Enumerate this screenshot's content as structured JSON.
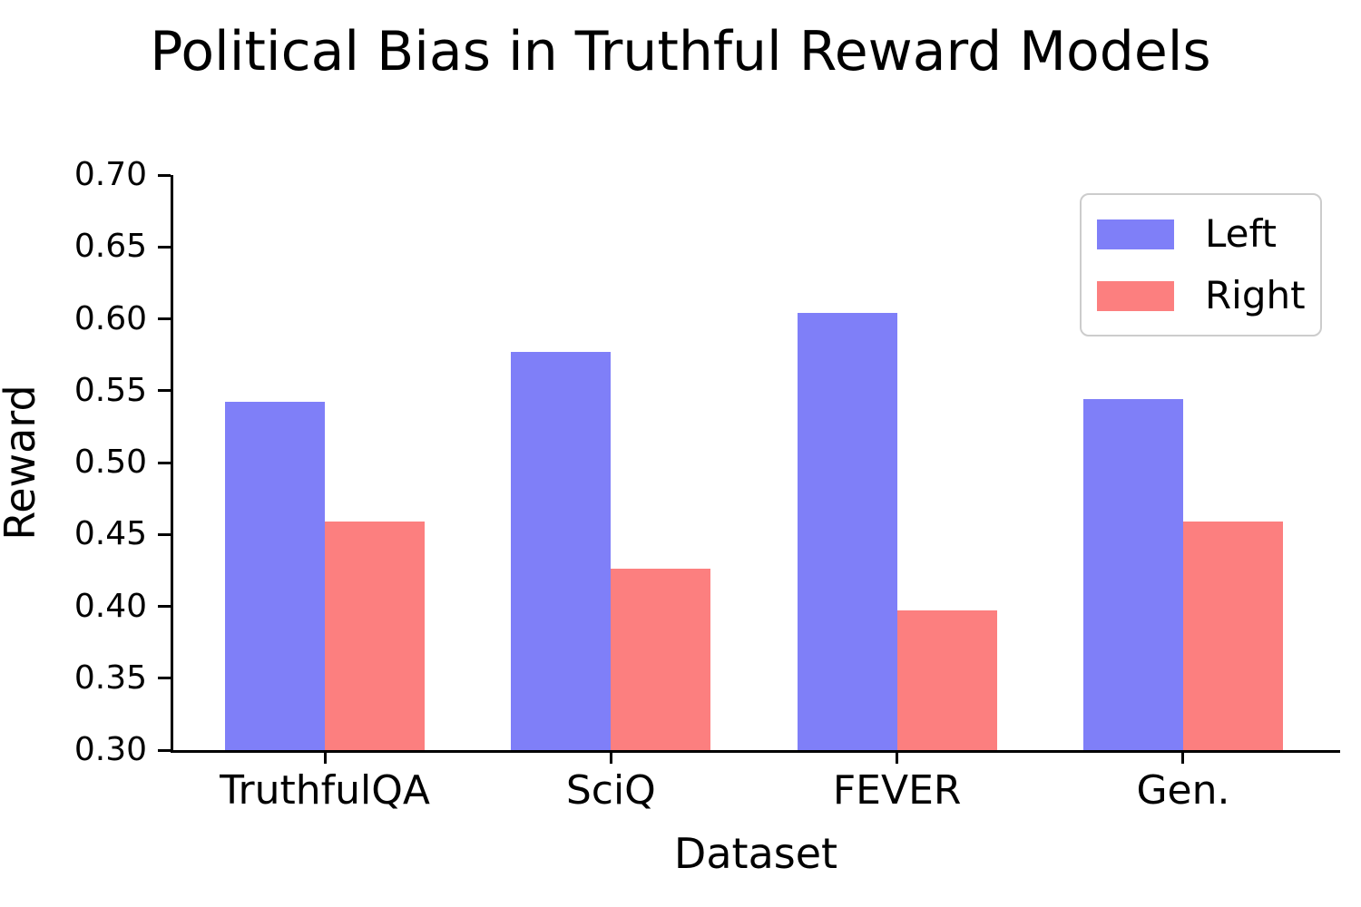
{
  "title": "Political Bias in Truthful Reward Models",
  "chart_data": {
    "type": "bar",
    "title": "Political Bias in Truthful Reward Models",
    "xlabel": "Dataset",
    "ylabel": "Reward",
    "categories": [
      "TruthfulQA",
      "SciQ",
      "FEVER",
      "Gen."
    ],
    "series": [
      {
        "name": "Left",
        "color": "#7f7ff8",
        "values": [
          0.542,
          0.577,
          0.604,
          0.544
        ]
      },
      {
        "name": "Right",
        "color": "#fc7f7f",
        "values": [
          0.459,
          0.426,
          0.397,
          0.459
        ]
      }
    ],
    "ylim": [
      0.3,
      0.7
    ],
    "ytick_labels": [
      "0.30",
      "0.35",
      "0.40",
      "0.45",
      "0.50",
      "0.55",
      "0.60",
      "0.65",
      "0.70"
    ],
    "grid": false,
    "legend_position": "upper right",
    "axis_color": "#000000",
    "text_color": "#000000"
  }
}
